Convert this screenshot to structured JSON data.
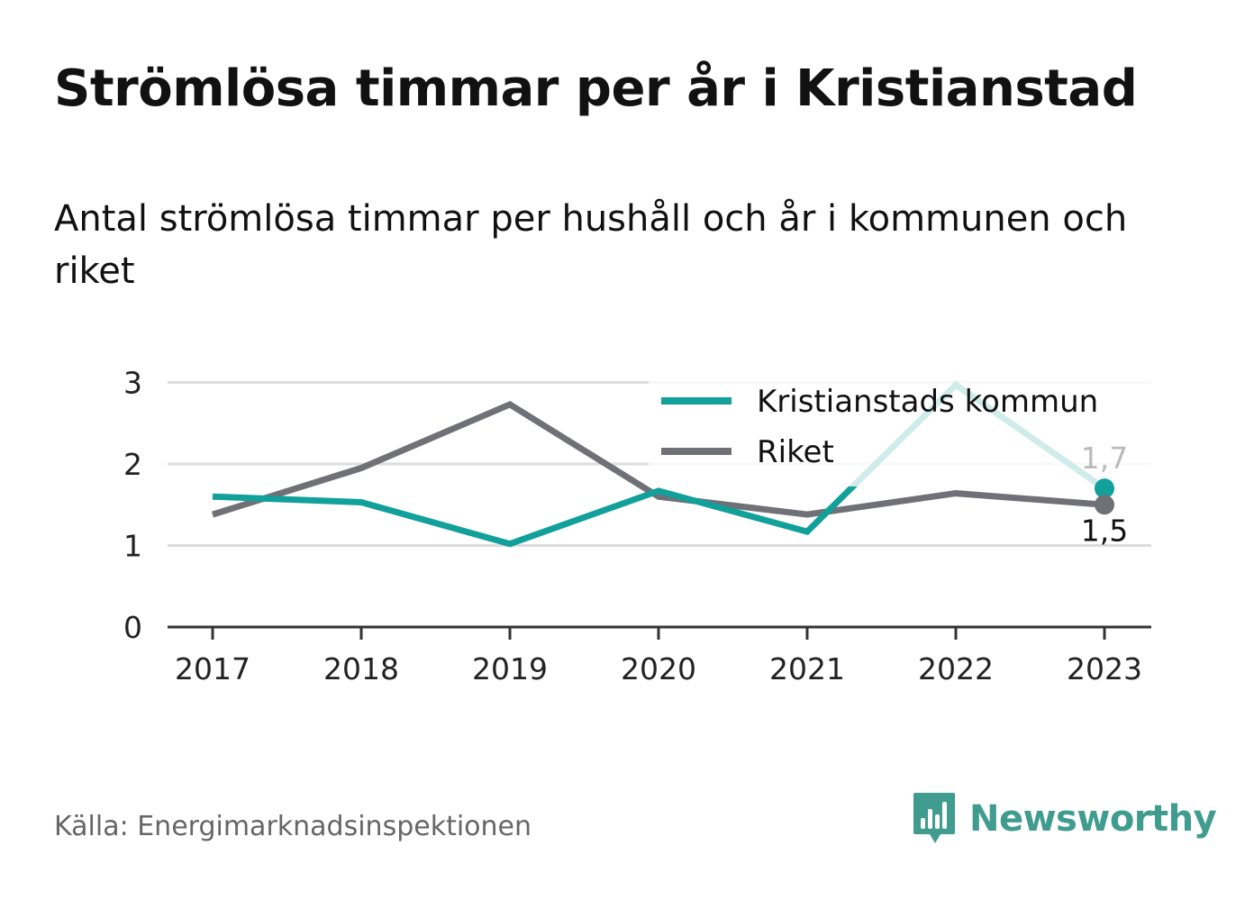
{
  "title": "Strömlösa timmar per år i Kristianstad",
  "subtitle": "Antal strömlösa timmar per hushåll och år i kommunen och riket",
  "source": "Källa: Energimarknadsinspektionen",
  "brand": {
    "name": "Newsworthy",
    "color": "#3f9c8e",
    "icon": "bar-chart-speech-bubble-icon"
  },
  "chart_data": {
    "type": "line",
    "x": [
      "2017",
      "2018",
      "2019",
      "2020",
      "2021",
      "2022",
      "2023"
    ],
    "y_ticks": [
      0,
      1,
      2,
      3
    ],
    "ylim": [
      0,
      3
    ],
    "grid": true,
    "legend_position": "top-right",
    "series": [
      {
        "name": "Kristianstads kommun",
        "color": "#11a09a",
        "values": [
          1.6,
          1.53,
          1.02,
          1.67,
          1.17,
          2.97,
          1.7
        ],
        "end_label": "1,7"
      },
      {
        "name": "Riket",
        "color": "#707077",
        "values": [
          1.38,
          1.95,
          2.73,
          1.6,
          1.38,
          1.64,
          1.5
        ],
        "end_label": "1,5"
      }
    ]
  }
}
